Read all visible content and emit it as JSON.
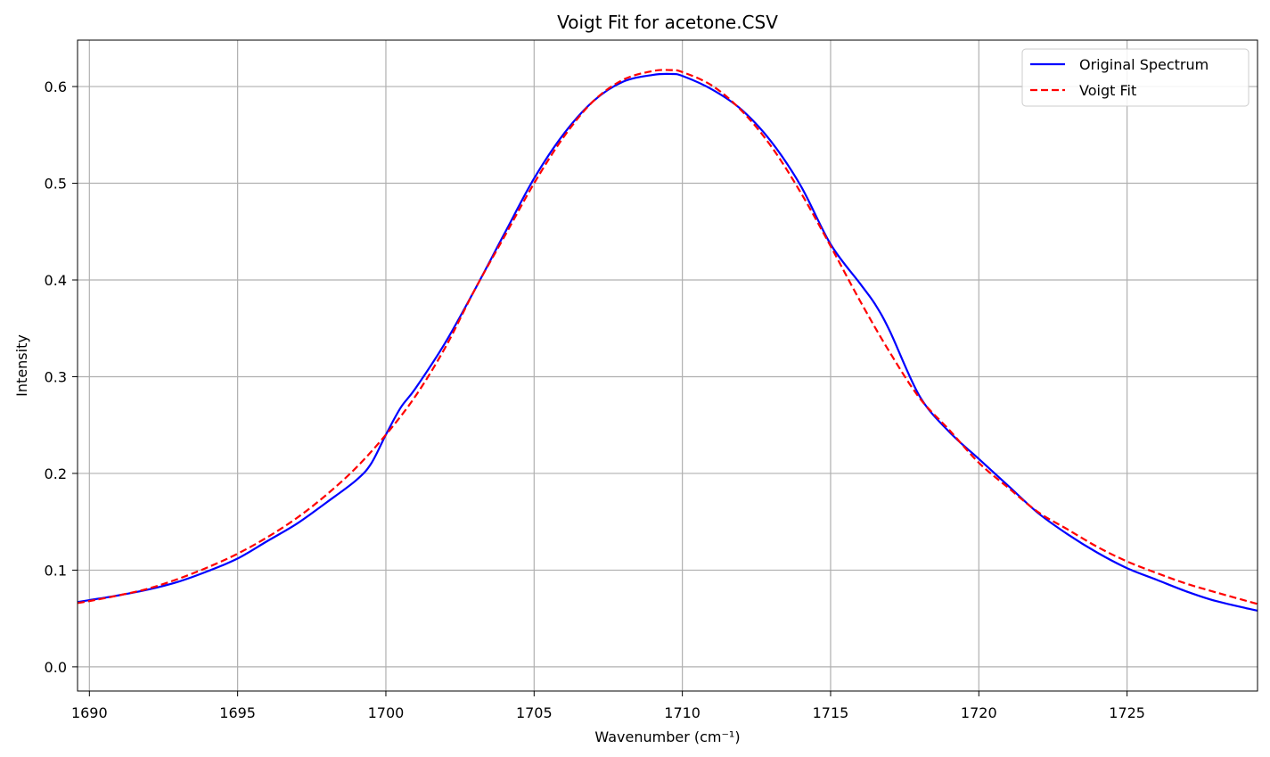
{
  "chart_data": {
    "type": "line",
    "title": "Voigt Fit for acetone.CSV",
    "xlabel": "Wavenumber (cm⁻¹)",
    "ylabel": "Intensity",
    "xlim": [
      1689.6,
      1729.4
    ],
    "ylim": [
      -0.025,
      0.648
    ],
    "xticks": [
      1690,
      1695,
      1700,
      1705,
      1710,
      1715,
      1720,
      1725
    ],
    "yticks": [
      0.0,
      0.1,
      0.2,
      0.3,
      0.4,
      0.5,
      0.6
    ],
    "xtick_labels": [
      "1690",
      "1695",
      "1700",
      "1705",
      "1710",
      "1715",
      "1720",
      "1725"
    ],
    "ytick_labels": [
      "0.0",
      "0.1",
      "0.2",
      "0.3",
      "0.4",
      "0.5",
      "0.6"
    ],
    "grid": true,
    "legend_position": "top-right",
    "series": [
      {
        "name": "Original Spectrum",
        "color": "#0000ff",
        "style": "solid",
        "x": [
          1689.6,
          1690,
          1691,
          1692,
          1693,
          1694,
          1695,
          1696,
          1697,
          1698,
          1699,
          1699.5,
          1700,
          1700.5,
          1701,
          1702,
          1703,
          1704,
          1705,
          1706,
          1707,
          1708,
          1709,
          1709.6,
          1710,
          1711,
          1712,
          1713,
          1714,
          1715,
          1716,
          1716.5,
          1717,
          1718,
          1719,
          1720,
          1721,
          1722,
          1723,
          1724,
          1725,
          1726,
          1727,
          1728,
          1729.4
        ],
        "y": [
          0.067,
          0.069,
          0.074,
          0.08,
          0.088,
          0.099,
          0.112,
          0.13,
          0.148,
          0.17,
          0.193,
          0.21,
          0.24,
          0.268,
          0.288,
          0.335,
          0.39,
          0.448,
          0.505,
          0.551,
          0.585,
          0.605,
          0.612,
          0.613,
          0.611,
          0.597,
          0.576,
          0.543,
          0.497,
          0.437,
          0.396,
          0.375,
          0.347,
          0.28,
          0.243,
          0.215,
          0.187,
          0.159,
          0.137,
          0.118,
          0.102,
          0.09,
          0.078,
          0.068,
          0.058
        ]
      },
      {
        "name": "Voigt Fit",
        "color": "#ff0000",
        "style": "dashed",
        "x": [
          1689.6,
          1690,
          1691,
          1692,
          1693,
          1694,
          1695,
          1696,
          1697,
          1698,
          1699,
          1700,
          1701,
          1702,
          1703,
          1704,
          1705,
          1706,
          1707,
          1708,
          1709,
          1709.6,
          1710,
          1711,
          1712,
          1713,
          1714,
          1715,
          1716,
          1717,
          1718,
          1719,
          1720,
          1721,
          1722,
          1723,
          1724,
          1725,
          1726,
          1727,
          1728,
          1729.4
        ],
        "y": [
          0.066,
          0.068,
          0.074,
          0.081,
          0.091,
          0.103,
          0.117,
          0.134,
          0.154,
          0.178,
          0.206,
          0.24,
          0.28,
          0.33,
          0.39,
          0.445,
          0.5,
          0.548,
          0.585,
          0.607,
          0.616,
          0.617,
          0.615,
          0.601,
          0.575,
          0.538,
          0.49,
          0.435,
          0.378,
          0.325,
          0.278,
          0.245,
          0.211,
          0.185,
          0.16,
          0.142,
          0.124,
          0.109,
          0.097,
          0.086,
          0.077,
          0.065
        ]
      }
    ]
  }
}
